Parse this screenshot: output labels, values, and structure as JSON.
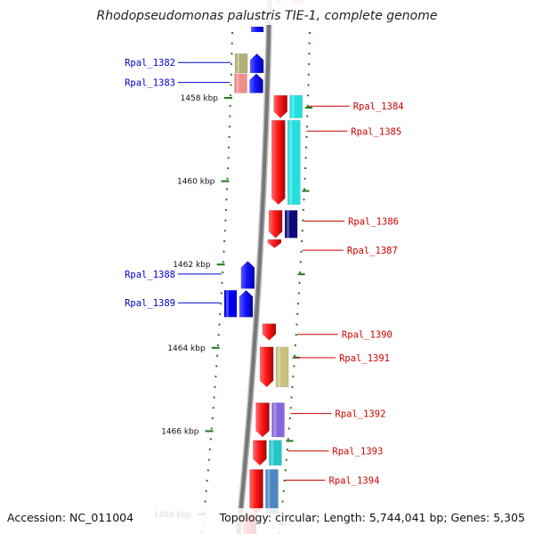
{
  "title": "Rhodopseudomonas palustris TIE-1, complete genome",
  "footer": {
    "accession": "Accession: NC_011004",
    "topology": "Topology: circular; Length: 5,744,041 bp; Genes: 5,305"
  },
  "colors": {
    "minus_label": "#0000cc",
    "plus_label": "#cc0000",
    "backbone": "#777777",
    "tick": "#1f7a1f"
  },
  "kbp_ticks": [
    {
      "label": "1458 kbp",
      "kbp": 1458
    },
    {
      "label": "1460 kbp",
      "kbp": 1460
    },
    {
      "label": "1462 kbp",
      "kbp": 1462
    },
    {
      "label": "1464 kbp",
      "kbp": 1464
    },
    {
      "label": "1466 kbp",
      "kbp": 1466
    },
    {
      "label": "1468 kbp",
      "kbp": 1468
    }
  ],
  "genes": [
    {
      "name": "Rpal_1382",
      "strand": "minus",
      "start_kbp": 1456.94,
      "end_kbp": 1457.4,
      "cog_color": "#b5b07a"
    },
    {
      "name": "Rpal_1383",
      "strand": "minus",
      "start_kbp": 1457.42,
      "end_kbp": 1457.88,
      "cog_color": "#ef8c8c"
    },
    {
      "name": "Rpal_1384",
      "strand": "plus",
      "start_kbp": 1457.94,
      "end_kbp": 1458.48,
      "cog_color": "#22e0e0"
    },
    {
      "name": "Rpal_1385",
      "strand": "plus",
      "start_kbp": 1458.54,
      "end_kbp": 1460.56,
      "cog_color": "#22e0e0"
    },
    {
      "name": "Rpal_1386",
      "strand": "plus",
      "start_kbp": 1460.7,
      "end_kbp": 1461.36,
      "cog_color": "#0a0a7a"
    },
    {
      "name": "Rpal_1387",
      "strand": "plus",
      "start_kbp": 1461.4,
      "end_kbp": 1461.6,
      "cog_color": ""
    },
    {
      "name": "Rpal_1388",
      "strand": "minus",
      "start_kbp": 1461.92,
      "end_kbp": 1462.58,
      "cog_color": ""
    },
    {
      "name": "Rpal_1389",
      "strand": "minus",
      "start_kbp": 1462.62,
      "end_kbp": 1463.26,
      "cog_color": "#0000ee"
    },
    {
      "name": "Rpal_1390",
      "strand": "plus",
      "start_kbp": 1463.42,
      "end_kbp": 1463.82,
      "cog_color": ""
    },
    {
      "name": "Rpal_1391",
      "strand": "plus",
      "start_kbp": 1463.98,
      "end_kbp": 1464.94,
      "cog_color": "#c8c27e"
    },
    {
      "name": "Rpal_1392",
      "strand": "plus",
      "start_kbp": 1465.32,
      "end_kbp": 1466.14,
      "cog_color": "#8866dd"
    },
    {
      "name": "Rpal_1393",
      "strand": "plus",
      "start_kbp": 1466.22,
      "end_kbp": 1466.82,
      "cog_color": "#22c8c8"
    },
    {
      "name": "Rpal_1394",
      "strand": "plus",
      "start_kbp": 1466.92,
      "end_kbp": 1467.98,
      "cog_color": "#4d86c2"
    }
  ]
}
